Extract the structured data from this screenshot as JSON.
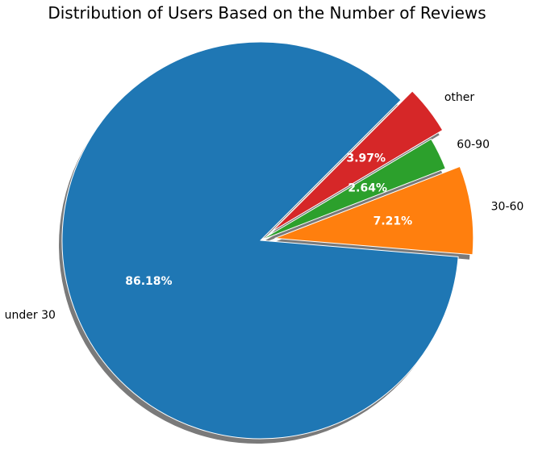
{
  "chart_data": {
    "type": "pie",
    "title": "Distribution of Users Based on the Number of Reviews",
    "categories": [
      "under 30",
      "30-60",
      "60-90",
      "other"
    ],
    "values": [
      86.18,
      7.21,
      2.64,
      3.97
    ],
    "value_labels": [
      "86.18%",
      "7.21%",
      "2.64%",
      "3.97%"
    ],
    "colors": [
      "#1f77b4",
      "#ff7f0e",
      "#2ca02c",
      "#d62728"
    ],
    "start_angle_deg": 45,
    "exploded": [
      false,
      true,
      false,
      true
    ],
    "shadow": true,
    "legend": false
  }
}
